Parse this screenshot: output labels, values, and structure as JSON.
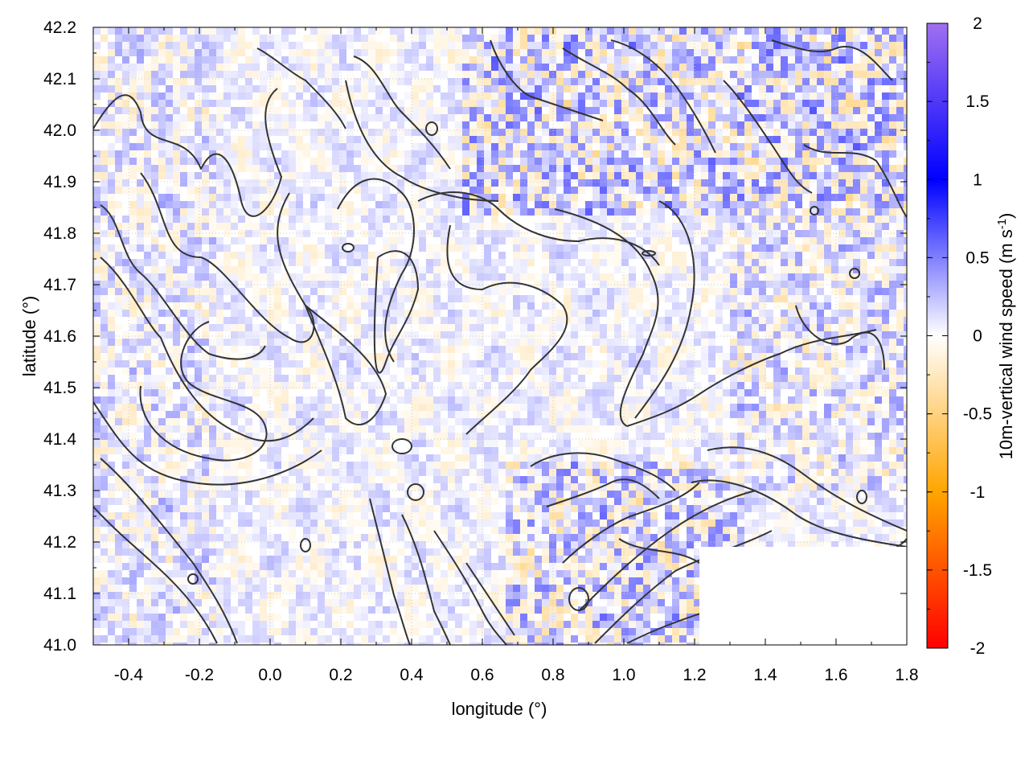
{
  "chart_data": {
    "type": "heatmap",
    "title": "",
    "xlabel": "longitude (°)",
    "ylabel": "latitude (°)",
    "colorbar_label_main": "10m-vertical wind speed (m s",
    "colorbar_label_sup": "-1",
    "colorbar_label_end": ")",
    "xlim": [
      -0.5,
      1.8
    ],
    "ylim": [
      41.0,
      42.2
    ],
    "x_ticks": [
      -0.4,
      -0.2,
      0.0,
      0.2,
      0.4,
      0.6,
      0.8,
      1.0,
      1.2,
      1.4,
      1.6,
      1.8
    ],
    "x_tick_labels": [
      "-0.4",
      "-0.2",
      "0.0",
      "0.2",
      "0.4",
      "0.6",
      "0.8",
      "1.0",
      "1.2",
      "1.4",
      "1.6",
      "1.8"
    ],
    "y_ticks": [
      41.0,
      41.1,
      41.2,
      41.3,
      41.4,
      41.5,
      41.6,
      41.7,
      41.8,
      41.9,
      42.0,
      42.1,
      42.2
    ],
    "y_tick_labels": [
      "41.0",
      "41.1",
      "41.2",
      "41.3",
      "41.4",
      "41.5",
      "41.6",
      "41.7",
      "41.8",
      "41.9",
      "42.0",
      "42.1",
      "42.2"
    ],
    "colorbar": {
      "range": [
        -2,
        2
      ],
      "ticks": [
        -2,
        -1.5,
        -1,
        -0.5,
        0,
        0.5,
        1,
        1.5,
        2
      ],
      "tick_labels": [
        "-2",
        "-1.5",
        "-1",
        "-0.5",
        "0",
        "0.5",
        "1",
        "1.5",
        "2"
      ],
      "stops": [
        {
          "value": -2.0,
          "color": "#ff0000"
        },
        {
          "value": -1.0,
          "color": "#ffa500"
        },
        {
          "value": 0.0,
          "color": "#ffffff"
        },
        {
          "value": 1.0,
          "color": "#0000ff"
        },
        {
          "value": 2.0,
          "color": "#a070f0"
        }
      ]
    },
    "grid": true,
    "contour_color": "#333333",
    "plot_background": "#ffffff"
  }
}
